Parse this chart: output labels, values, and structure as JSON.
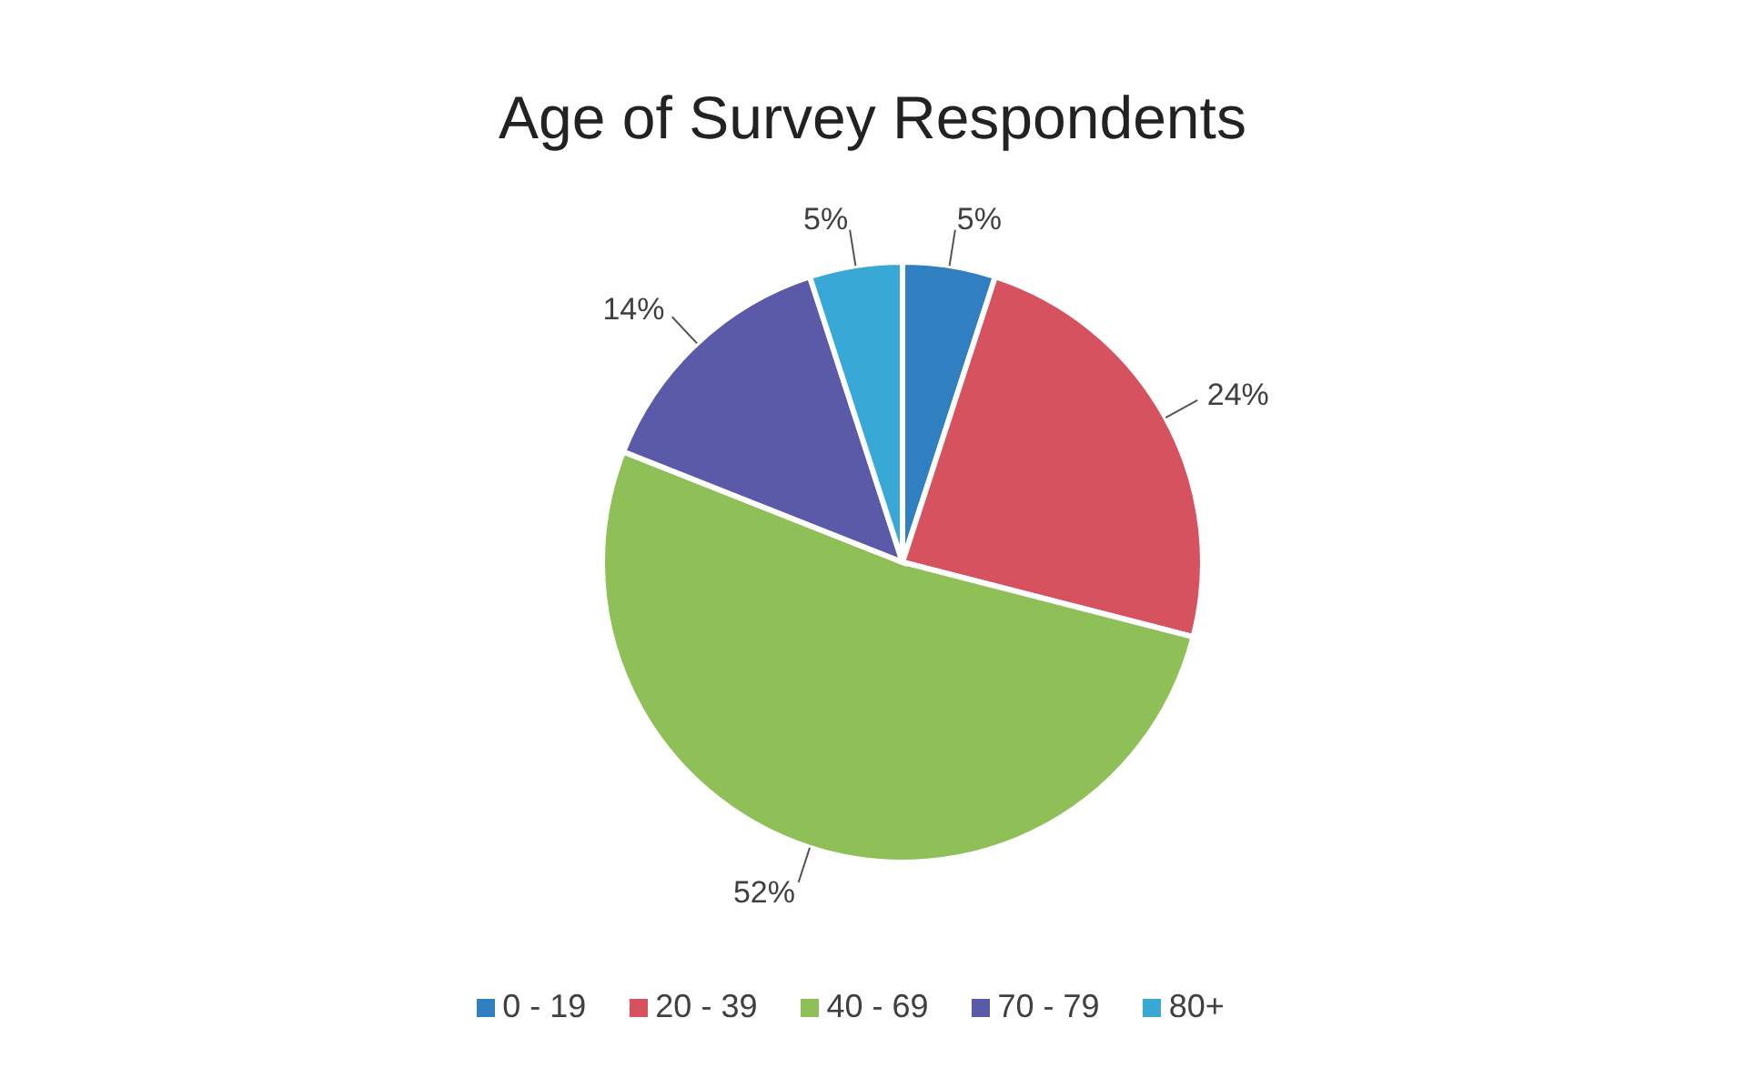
{
  "chart_data": {
    "type": "pie",
    "title": "Age of Survey Respondents",
    "categories": [
      "0 - 19",
      "20 - 39",
      "40 - 69",
      "70 - 79",
      "80+"
    ],
    "values": [
      5,
      24,
      52,
      14,
      5
    ],
    "value_labels": [
      "5%",
      "24%",
      "52%",
      "14%",
      "5%"
    ],
    "colors": [
      "#2f7fc1",
      "#d6525e",
      "#8fc057",
      "#5a5aa8",
      "#38a9d6"
    ],
    "legend": "bottom"
  }
}
